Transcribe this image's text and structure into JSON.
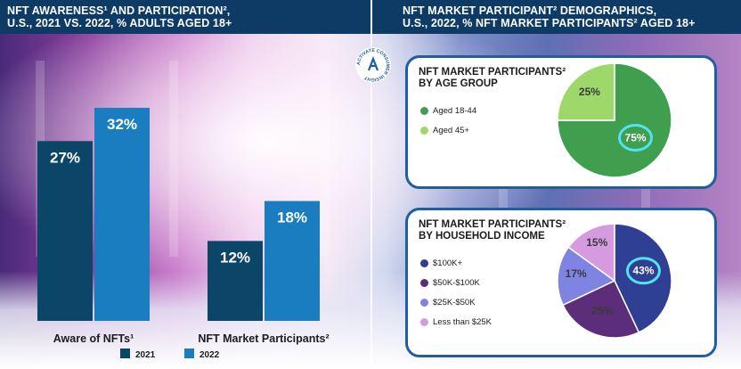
{
  "left_title": {
    "line1": "NFT AWARENESS¹ AND PARTICIPATION²,",
    "line2": "U.S., 2021 VS. 2022, % ADULTS AGED 18+"
  },
  "right_title": {
    "line1": "NFT MARKET PARTICIPANT² DEMOGRAPHICS,",
    "line2": "U.S., 2022, % NFT MARKET PARTICIPANTS² AGED 18+"
  },
  "logo": {
    "text": "ACTIVATE CONSUMER INSIGHT",
    "icon": "activate-logo-icon"
  },
  "colors": {
    "s2021": "#0b4568",
    "s2022": "#1a7dbf",
    "header": "#0d3b66",
    "card_border": "#1f5fa0"
  },
  "chart_data": [
    {
      "type": "bar",
      "categories": [
        "Aware of NFTs¹",
        "NFT Market Participants²"
      ],
      "series": [
        {
          "name": "2021",
          "values": [
            27,
            12
          ],
          "labels": [
            "27%",
            "12%"
          ],
          "color": "#0b4568"
        },
        {
          "name": "2022",
          "values": [
            32,
            18
          ],
          "labels": [
            "32%",
            "18%"
          ],
          "color": "#1a7dbf"
        }
      ],
      "ylim": [
        0,
        34
      ],
      "legend_position": "bottom"
    },
    {
      "type": "pie",
      "title_line1": "NFT MARKET PARTICIPANTS²",
      "title_line2": "BY AGE GROUP",
      "slices": [
        {
          "label": "Aged 18-44",
          "value": 75,
          "text": "75%",
          "color": "#3f9f4e",
          "highlight": true
        },
        {
          "label": "Aged 45+",
          "value": 25,
          "text": "25%",
          "color": "#9ed86b",
          "highlight": false
        }
      ],
      "legend_position": "left"
    },
    {
      "type": "pie",
      "title_line1": "NFT MARKET PARTICIPANTS²",
      "title_line2": "BY HOUSEHOLD INCOME",
      "slices": [
        {
          "label": "$100K+",
          "value": 43,
          "text": "43%",
          "color": "#2f3f93",
          "highlight": true
        },
        {
          "label": "$50K-$100K",
          "value": 25,
          "text": "25%",
          "color": "#5c2d7a",
          "highlight": false
        },
        {
          "label": "$25K-$50K",
          "value": 17,
          "text": "17%",
          "color": "#7f84e3",
          "highlight": false
        },
        {
          "label": "Less than $25K",
          "value": 15,
          "text": "15%",
          "color": "#d59ae0",
          "highlight": false
        }
      ],
      "legend_position": "left"
    }
  ]
}
